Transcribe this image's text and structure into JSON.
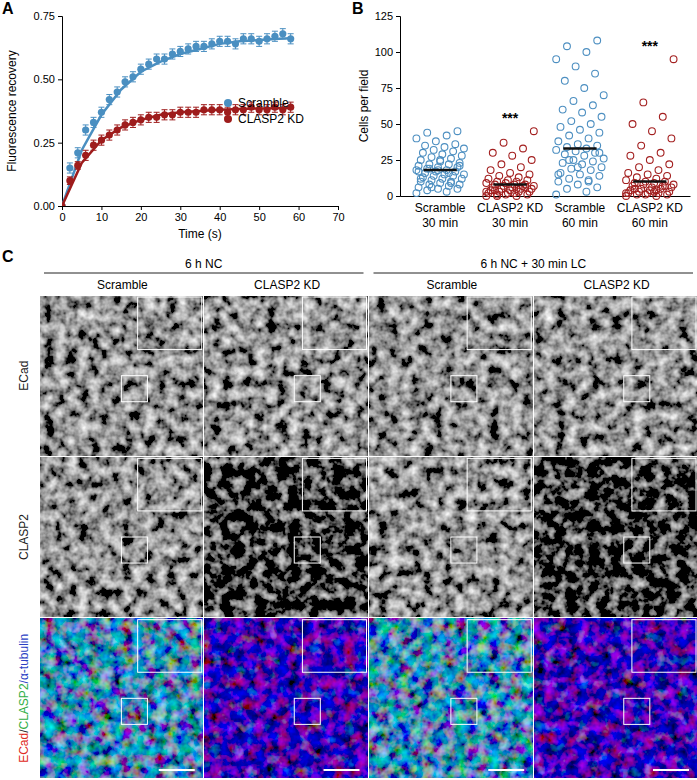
{
  "chart_data": [
    {
      "type": "line",
      "panel_label": "A",
      "x_label": "Time (s)",
      "y_label": "Fluorescence recovery",
      "xlim": [
        0,
        70
      ],
      "xticks": [
        0,
        10,
        20,
        30,
        40,
        50,
        60,
        70
      ],
      "ylim": [
        0,
        0.75
      ],
      "yticks": [
        {
          "value": 0,
          "label": "0.00"
        },
        {
          "value": 0.25,
          "label": "0.25"
        },
        {
          "value": 0.5,
          "label": "0.50"
        },
        {
          "value": 0.75,
          "label": "0.75"
        }
      ],
      "legend": "center right",
      "series": [
        {
          "name": "Scramble",
          "color": "#4a8fc1",
          "type": "scatter",
          "marker": "circle",
          "x": [
            0,
            2,
            4,
            6,
            8,
            10,
            12,
            14,
            16,
            18,
            20,
            22,
            24,
            26,
            28,
            30,
            32,
            34,
            36,
            38,
            40,
            42,
            44,
            46,
            48,
            50,
            52,
            54,
            56,
            58
          ],
          "values": [
            0,
            0.15,
            0.21,
            0.3,
            0.33,
            0.37,
            0.42,
            0.45,
            0.49,
            0.51,
            0.54,
            0.56,
            0.58,
            0.58,
            0.6,
            0.61,
            0.62,
            0.63,
            0.63,
            0.64,
            0.65,
            0.65,
            0.64,
            0.66,
            0.66,
            0.65,
            0.66,
            0.67,
            0.68,
            0.66
          ],
          "errors": [
            0,
            0.02,
            0.02,
            0.02,
            0.02,
            0.02,
            0.02,
            0.02,
            0.02,
            0.02,
            0.02,
            0.02,
            0.02,
            0.02,
            0.02,
            0.02,
            0.02,
            0.02,
            0.02,
            0.02,
            0.02,
            0.02,
            0.02,
            0.02,
            0.02,
            0.02,
            0.02,
            0.02,
            0.02,
            0.02
          ]
        },
        {
          "color": "#4a8fc1",
          "type": "line",
          "x": [
            0,
            5,
            10,
            15,
            20,
            25,
            30,
            35,
            40,
            45,
            50,
            55,
            58
          ],
          "values": [
            0,
            0.22,
            0.36,
            0.46,
            0.53,
            0.57,
            0.6,
            0.62,
            0.64,
            0.65,
            0.655,
            0.66,
            0.662
          ]
        },
        {
          "name": "CLASP2 KD",
          "color": "#9e1c1c",
          "type": "scatter",
          "marker": "circle",
          "x": [
            0,
            2,
            4,
            6,
            8,
            10,
            12,
            14,
            16,
            18,
            20,
            22,
            24,
            26,
            28,
            30,
            32,
            34,
            36,
            38,
            40,
            42,
            44,
            46,
            48,
            50,
            52,
            54,
            56,
            58
          ],
          "values": [
            0,
            0.1,
            0.16,
            0.2,
            0.24,
            0.26,
            0.28,
            0.3,
            0.32,
            0.33,
            0.34,
            0.35,
            0.35,
            0.36,
            0.36,
            0.37,
            0.37,
            0.37,
            0.38,
            0.38,
            0.38,
            0.37,
            0.38,
            0.38,
            0.39,
            0.38,
            0.38,
            0.39,
            0.38,
            0.39
          ],
          "errors": [
            0,
            0.015,
            0.015,
            0.02,
            0.02,
            0.02,
            0.02,
            0.02,
            0.02,
            0.02,
            0.02,
            0.02,
            0.02,
            0.02,
            0.02,
            0.02,
            0.02,
            0.02,
            0.02,
            0.02,
            0.02,
            0.02,
            0.02,
            0.02,
            0.02,
            0.02,
            0.02,
            0.02,
            0.02,
            0.02
          ]
        },
        {
          "color": "#9e1c1c",
          "type": "line",
          "x": [
            0,
            5,
            10,
            15,
            20,
            25,
            30,
            35,
            40,
            45,
            50,
            55,
            58
          ],
          "values": [
            0,
            0.17,
            0.26,
            0.31,
            0.34,
            0.36,
            0.37,
            0.375,
            0.38,
            0.383,
            0.385,
            0.386,
            0.387
          ]
        }
      ]
    },
    {
      "type": "dot",
      "panel_label": "B",
      "y_label": "Cells per field",
      "marker": "open_circle",
      "categories": [
        "Scramble 30 min",
        "CLASP2 KD 30 min",
        "Scramble 60 min",
        "CLASP2 KD 60 min"
      ],
      "colors": [
        "#4d8fc1",
        "#a31f1f",
        "#4d8fc1",
        "#a31f1f"
      ],
      "ylim": [
        0,
        125
      ],
      "yticks": [
        0,
        25,
        50,
        75,
        100,
        125
      ],
      "values": [
        [
          2,
          3,
          4,
          5,
          5,
          6,
          7,
          8,
          8,
          9,
          10,
          10,
          11,
          12,
          12,
          13,
          14,
          14,
          15,
          15,
          16,
          17,
          17,
          18,
          18,
          19,
          20,
          20,
          21,
          22,
          22,
          23,
          24,
          25,
          26,
          27,
          28,
          29,
          30,
          31,
          32,
          33,
          34,
          35,
          36,
          38,
          40,
          42,
          44,
          45,
          18,
          17,
          16,
          19,
          21,
          25,
          12,
          9,
          6
        ],
        [
          0,
          0,
          1,
          1,
          2,
          2,
          3,
          3,
          3,
          4,
          4,
          5,
          5,
          5,
          6,
          6,
          7,
          7,
          7,
          8,
          8,
          8,
          9,
          9,
          10,
          10,
          11,
          11,
          12,
          13,
          14,
          15,
          16,
          18,
          20,
          22,
          25,
          28,
          30,
          33,
          37,
          45,
          2,
          4,
          6,
          1,
          3,
          5,
          0
        ],
        [
          1,
          3,
          5,
          6,
          8,
          10,
          11,
          12,
          14,
          15,
          16,
          18,
          19,
          20,
          22,
          23,
          24,
          25,
          26,
          28,
          29,
          30,
          31,
          32,
          33,
          34,
          35,
          36,
          38,
          40,
          42,
          44,
          46,
          48,
          50,
          52,
          55,
          58,
          60,
          63,
          66,
          70,
          75,
          80,
          85,
          90,
          95,
          100,
          104,
          108,
          20,
          15,
          10,
          25,
          30
        ],
        [
          0,
          0,
          1,
          1,
          2,
          2,
          2,
          3,
          3,
          4,
          4,
          5,
          5,
          6,
          6,
          7,
          7,
          8,
          8,
          9,
          9,
          10,
          10,
          11,
          12,
          13,
          14,
          15,
          16,
          18,
          20,
          22,
          25,
          28,
          30,
          35,
          40,
          45,
          50,
          55,
          65,
          95,
          3,
          5,
          7,
          1,
          2,
          4
        ]
      ],
      "means": [
        18,
        8,
        33,
        10
      ],
      "annotations": [
        {
          "text": "***",
          "category": 1
        },
        {
          "text": "***",
          "category": 3
        }
      ]
    },
    {
      "type": "image_grid",
      "panel_label": "C",
      "groups": [
        {
          "label": "6 h NC",
          "columns": [
            "Scramble",
            "CLASP2 KD"
          ]
        },
        {
          "label": "6 h NC + 30 min LC",
          "columns": [
            "Scramble",
            "CLASP2 KD"
          ]
        }
      ],
      "rows": [
        {
          "label": [
            {
              "text": "ECad",
              "color": "#222222"
            }
          ]
        },
        {
          "label": [
            {
              "text": "CLASP2",
              "color": "#222222"
            }
          ]
        },
        {
          "label": [
            {
              "text": "ECad",
              "color": "#e02a24"
            },
            {
              "text": "/",
              "color": "#222222"
            },
            {
              "text": "CLASP2",
              "color": "#2fae45"
            },
            {
              "text": "/α-tubulin",
              "color": "#2b3fc4"
            }
          ]
        }
      ]
    }
  ]
}
